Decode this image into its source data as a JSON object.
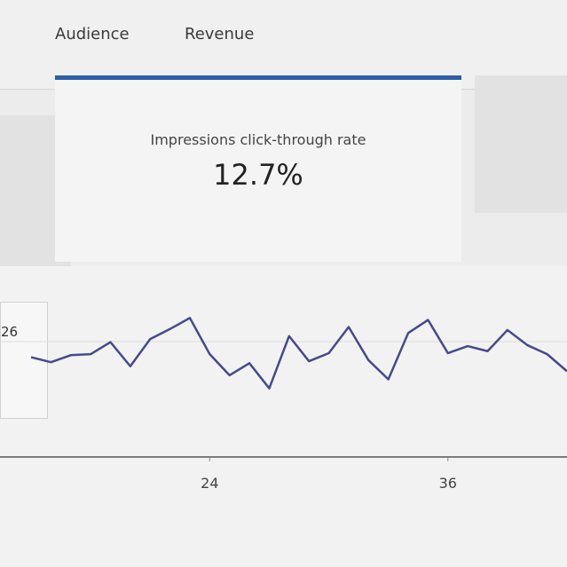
{
  "tabs": [
    "Audience",
    "Revenue"
  ],
  "metric": {
    "label": "Impressions click-through rate",
    "value": "12.7%"
  },
  "side_label": "26",
  "chart_data": {
    "type": "line",
    "x": [
      15,
      16,
      17,
      18,
      19,
      20,
      21,
      22,
      23,
      24,
      25,
      26,
      27,
      28,
      29,
      30,
      31,
      32,
      33,
      34,
      35,
      36,
      37,
      38,
      39,
      40,
      41,
      42
    ],
    "values": [
      8.6,
      8.1,
      8.8,
      8.9,
      10.1,
      7.7,
      10.4,
      11.4,
      12.5,
      8.9,
      6.8,
      8.0,
      5.5,
      10.7,
      8.2,
      9.0,
      11.6,
      8.3,
      6.4,
      11.0,
      12.3,
      9.0,
      9.7,
      9.2,
      11.3,
      9.8,
      8.9,
      7.2
    ],
    "color": "#454a8c",
    "xlim": [
      15,
      42
    ],
    "xticks": [
      24,
      36
    ],
    "ylim": [
      0,
      15
    ]
  }
}
